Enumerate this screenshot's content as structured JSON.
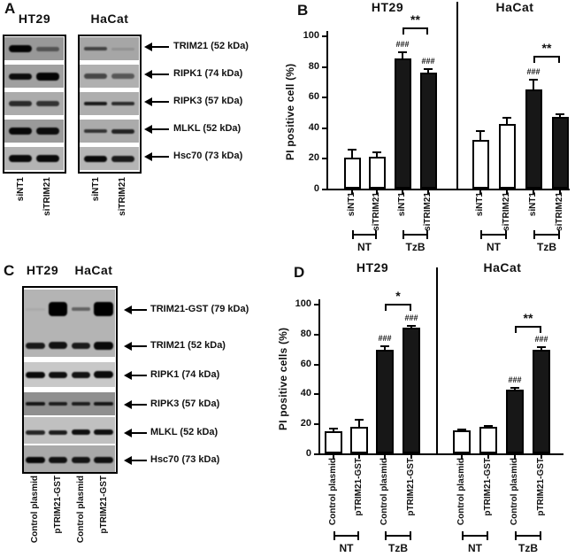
{
  "figure": {
    "background": "#ffffff",
    "ink": "#111111"
  },
  "panel_a": {
    "label": "A",
    "targets": [
      "TRIM21 (52 kDa)",
      "RIPK1 (74 kDa)",
      "RIPK3 (57 kDa)",
      "MLKL (52 kDa)",
      "Hsc70 (73 kDa)"
    ],
    "blots": [
      {
        "cell_line": "HT29",
        "lanes": [
          "siNT1",
          "siTRIM21"
        ],
        "rows": [
          {
            "bg": "#989898",
            "intensity": [
              0.97,
              0.45
            ],
            "thickness": [
              8,
              5
            ]
          },
          {
            "bg": "#a0a0a0",
            "intensity": [
              0.92,
              0.97
            ],
            "thickness": [
              7,
              9
            ]
          },
          {
            "bg": "#ababab",
            "intensity": [
              0.75,
              0.7
            ],
            "thickness": [
              6,
              6
            ]
          },
          {
            "bg": "#9a9a9a",
            "intensity": [
              0.95,
              0.92
            ],
            "thickness": [
              8,
              8
            ]
          },
          {
            "bg": "#b3b3b3",
            "intensity": [
              0.95,
              0.95
            ],
            "thickness": [
              8,
              8
            ]
          }
        ]
      },
      {
        "cell_line": "HaCat",
        "lanes": [
          "siNT1",
          "siTRIM21"
        ],
        "rows": [
          {
            "bg": "#a6a6a6",
            "intensity": [
              0.6,
              0.12
            ],
            "thickness": [
              4,
              3
            ]
          },
          {
            "bg": "#b0b0b0",
            "intensity": [
              0.6,
              0.5
            ],
            "thickness": [
              6,
              6
            ]
          },
          {
            "bg": "#aeaeae",
            "intensity": [
              0.85,
              0.75
            ],
            "thickness": [
              4,
              4
            ]
          },
          {
            "bg": "#ababab",
            "intensity": [
              0.7,
              0.8
            ],
            "thickness": [
              4,
              5
            ]
          },
          {
            "bg": "#b5b5b5",
            "intensity": [
              0.95,
              0.85
            ],
            "thickness": [
              7,
              7
            ]
          }
        ]
      }
    ]
  },
  "panel_c": {
    "label": "C",
    "cell_lines": [
      "HT29",
      "HaCat"
    ],
    "lanes": [
      "Control plasmid",
      "pTRIM21-GST",
      "Control plasmid",
      "pTRIM21-GST"
    ],
    "targets": [
      "TRIM21-GST (79 kDa)",
      "TRIM21 (52 kDa)",
      "RIPK1 (74 kDa)",
      "RIPK3 (57 kDa)",
      "MLKL (52 kDa)",
      "Hsc70 (73 kDa)"
    ],
    "rows": [
      {
        "bg": "#b4b4b4",
        "intensity": [
          0.05,
          1.0,
          0.45,
          1.0
        ],
        "thickness": [
          3,
          16,
          4,
          16
        ]
      },
      {
        "bg": "#b4b4b4",
        "intensity": [
          0.85,
          0.9,
          0.85,
          0.95
        ],
        "thickness": [
          7,
          8,
          7,
          9
        ]
      },
      {
        "bg": "#c8c8c8",
        "intensity": [
          0.95,
          0.92,
          0.9,
          0.95
        ],
        "thickness": [
          7,
          7,
          7,
          8
        ]
      },
      {
        "bg": "#8f8f8f",
        "intensity": [
          0.85,
          0.8,
          0.8,
          0.85
        ],
        "thickness": [
          4,
          4,
          4,
          4
        ]
      },
      {
        "bg": "#c0c0c0",
        "intensity": [
          0.8,
          0.85,
          0.92,
          0.92
        ],
        "thickness": [
          5,
          5,
          6,
          6
        ]
      },
      {
        "bg": "#a9a9a9",
        "intensity": [
          0.95,
          0.9,
          0.88,
          0.9
        ],
        "thickness": [
          7,
          7,
          7,
          7
        ]
      }
    ]
  },
  "chart_data": [
    {
      "type": "bar",
      "panel_label": "B",
      "ylabel": "PI positive cell (%)",
      "ylim": [
        0,
        100
      ],
      "yticks": [
        0,
        20,
        40,
        60,
        80,
        100
      ],
      "treatments": [
        {
          "label": "NT",
          "from": 0,
          "to": 1
        },
        {
          "label": "TzB",
          "from": 2,
          "to": 3
        }
      ],
      "groups": [
        {
          "cell_line": "HT29",
          "bars": [
            {
              "label": "siNT1",
              "treatment": "NT",
              "value": 20,
              "error": 6,
              "fill": "white",
              "hash": ""
            },
            {
              "label": "siTRIM21",
              "treatment": "NT",
              "value": 21,
              "error": 3,
              "fill": "white",
              "hash": ""
            },
            {
              "label": "siNT1",
              "treatment": "TzB",
              "value": 85,
              "error": 4.5,
              "fill": "black",
              "hash": "###"
            },
            {
              "label": "siTRIM21",
              "treatment": "TzB",
              "value": 76,
              "error": 2.5,
              "fill": "black",
              "hash": "###"
            }
          ],
          "sig": {
            "from": 2,
            "to": 3,
            "label": "**"
          }
        },
        {
          "cell_line": "HaCat",
          "bars": [
            {
              "label": "siNT1",
              "treatment": "NT",
              "value": 32,
              "error": 6,
              "fill": "white",
              "hash": ""
            },
            {
              "label": "siTRIM21",
              "treatment": "NT",
              "value": 42,
              "error": 5,
              "fill": "white",
              "hash": ""
            },
            {
              "label": "siNT1",
              "treatment": "TzB",
              "value": 65,
              "error": 6.5,
              "fill": "black",
              "hash": "###"
            },
            {
              "label": "siTRIM21",
              "treatment": "TzB",
              "value": 47,
              "error": 2,
              "fill": "black",
              "hash": ""
            }
          ],
          "sig": {
            "from": 2,
            "to": 3,
            "label": "**"
          }
        }
      ]
    },
    {
      "type": "bar",
      "panel_label": "D",
      "ylabel": "PI positive cells (%)",
      "ylim": [
        0,
        100
      ],
      "yticks": [
        0,
        20,
        40,
        60,
        80,
        100
      ],
      "treatments": [
        {
          "label": "NT",
          "from": 0,
          "to": 1
        },
        {
          "label": "TzB",
          "from": 2,
          "to": 3
        }
      ],
      "groups": [
        {
          "cell_line": "HT29",
          "bars": [
            {
              "label": "Control plasmid",
              "treatment": "NT",
              "value": 15,
              "error": 2,
              "fill": "white",
              "hash": ""
            },
            {
              "label": "pTRIM21-GST",
              "treatment": "NT",
              "value": 18,
              "error": 5,
              "fill": "white",
              "hash": ""
            },
            {
              "label": "Control plasmid",
              "treatment": "TzB",
              "value": 69,
              "error": 3,
              "fill": "black",
              "hash": "###"
            },
            {
              "label": "pTRIM21-GST",
              "treatment": "TzB",
              "value": 84,
              "error": 2,
              "fill": "black",
              "hash": "###"
            }
          ],
          "sig": {
            "from": 2,
            "to": 3,
            "label": "*"
          }
        },
        {
          "cell_line": "HaCat",
          "bars": [
            {
              "label": "Control plasmid",
              "treatment": "NT",
              "value": 15.5,
              "error": 1,
              "fill": "white",
              "hash": ""
            },
            {
              "label": "pTRIM21-GST",
              "treatment": "NT",
              "value": 18,
              "error": 1,
              "fill": "white",
              "hash": ""
            },
            {
              "label": "Control plasmid",
              "treatment": "TzB",
              "value": 42.5,
              "error": 2,
              "fill": "black",
              "hash": "###"
            },
            {
              "label": "pTRIM21-GST",
              "treatment": "TzB",
              "value": 69,
              "error": 2.5,
              "fill": "black",
              "hash": "###"
            }
          ],
          "sig": {
            "from": 2,
            "to": 3,
            "label": "**"
          }
        }
      ]
    }
  ]
}
